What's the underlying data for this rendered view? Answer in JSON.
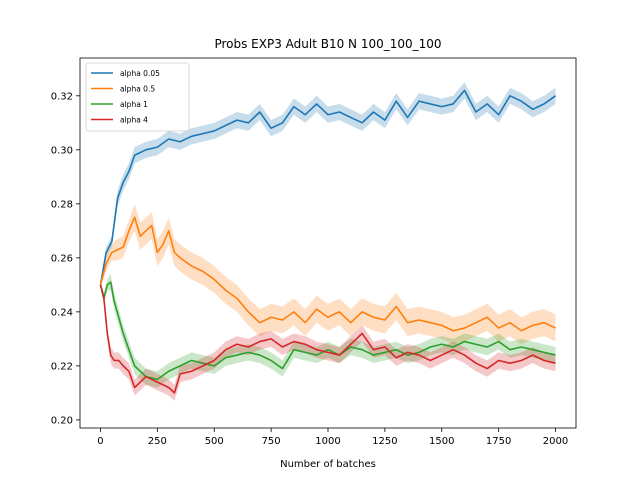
{
  "chart_data": {
    "type": "line",
    "title": "Probs EXP3 Adult B10 N 100_100_100",
    "xlabel": "Number of batches",
    "ylabel": "",
    "xlim": [
      -90,
      2090
    ],
    "ylim": [
      0.197,
      0.334
    ],
    "x_ticks": [
      0,
      250,
      500,
      750,
      1000,
      1250,
      1500,
      1750,
      2000
    ],
    "y_ticks": [
      0.2,
      0.22,
      0.24,
      0.26,
      0.28,
      0.3,
      0.32
    ],
    "y_tick_labels": [
      "0.20",
      "0.22",
      "0.24",
      "0.26",
      "0.28",
      "0.30",
      "0.32"
    ],
    "grid": false,
    "legend_position": "top-left",
    "band": "shaded band around each line",
    "series": [
      {
        "name": "alpha 0.05",
        "color": "#1f77b4",
        "x": [
          0,
          25,
          50,
          75,
          100,
          125,
          150,
          200,
          250,
          300,
          350,
          400,
          450,
          500,
          550,
          600,
          650,
          700,
          750,
          800,
          850,
          900,
          950,
          1000,
          1050,
          1100,
          1150,
          1200,
          1250,
          1300,
          1350,
          1400,
          1450,
          1500,
          1550,
          1600,
          1650,
          1700,
          1750,
          1800,
          1850,
          1900,
          1950,
          2000
        ],
        "values": [
          0.25,
          0.262,
          0.266,
          0.282,
          0.288,
          0.292,
          0.298,
          0.3,
          0.301,
          0.304,
          0.303,
          0.305,
          0.306,
          0.307,
          0.309,
          0.311,
          0.31,
          0.314,
          0.308,
          0.31,
          0.316,
          0.313,
          0.317,
          0.313,
          0.314,
          0.312,
          0.31,
          0.314,
          0.311,
          0.318,
          0.312,
          0.318,
          0.317,
          0.316,
          0.317,
          0.322,
          0.314,
          0.317,
          0.313,
          0.32,
          0.318,
          0.315,
          0.317,
          0.32
        ],
        "band": [
          0.001,
          0.002,
          0.002,
          0.003,
          0.003,
          0.003,
          0.003,
          0.003,
          0.003,
          0.003,
          0.003,
          0.003,
          0.003,
          0.003,
          0.003,
          0.003,
          0.003,
          0.003,
          0.003,
          0.003,
          0.003,
          0.003,
          0.003,
          0.003,
          0.003,
          0.003,
          0.003,
          0.003,
          0.003,
          0.003,
          0.003,
          0.003,
          0.003,
          0.003,
          0.003,
          0.003,
          0.003,
          0.003,
          0.003,
          0.003,
          0.003,
          0.003,
          0.003,
          0.003
        ]
      },
      {
        "name": "alpha 0.5",
        "color": "#ff7f0e",
        "x": [
          0,
          25,
          50,
          75,
          100,
          125,
          150,
          175,
          200,
          225,
          250,
          275,
          300,
          325,
          350,
          400,
          450,
          500,
          550,
          600,
          650,
          700,
          750,
          800,
          850,
          900,
          950,
          1000,
          1050,
          1100,
          1150,
          1200,
          1250,
          1300,
          1350,
          1400,
          1450,
          1500,
          1550,
          1600,
          1650,
          1700,
          1750,
          1800,
          1850,
          1900,
          1950,
          2000
        ],
        "values": [
          0.25,
          0.258,
          0.262,
          0.263,
          0.264,
          0.27,
          0.275,
          0.268,
          0.27,
          0.272,
          0.262,
          0.265,
          0.27,
          0.262,
          0.26,
          0.257,
          0.255,
          0.252,
          0.248,
          0.245,
          0.24,
          0.236,
          0.238,
          0.237,
          0.24,
          0.236,
          0.241,
          0.238,
          0.24,
          0.236,
          0.24,
          0.238,
          0.237,
          0.242,
          0.236,
          0.237,
          0.236,
          0.235,
          0.233,
          0.234,
          0.236,
          0.238,
          0.234,
          0.236,
          0.233,
          0.235,
          0.236,
          0.234
        ],
        "band": [
          0.001,
          0.003,
          0.003,
          0.004,
          0.004,
          0.004,
          0.005,
          0.005,
          0.005,
          0.005,
          0.005,
          0.005,
          0.005,
          0.005,
          0.005,
          0.005,
          0.005,
          0.005,
          0.005,
          0.005,
          0.005,
          0.005,
          0.005,
          0.005,
          0.005,
          0.005,
          0.005,
          0.005,
          0.005,
          0.005,
          0.005,
          0.005,
          0.005,
          0.005,
          0.005,
          0.005,
          0.005,
          0.005,
          0.005,
          0.005,
          0.005,
          0.005,
          0.005,
          0.005,
          0.005,
          0.005,
          0.005,
          0.005
        ]
      },
      {
        "name": "alpha 1",
        "color": "#2ca02c",
        "x": [
          0,
          15,
          30,
          45,
          60,
          80,
          100,
          125,
          150,
          175,
          200,
          250,
          300,
          350,
          400,
          450,
          500,
          550,
          600,
          650,
          700,
          750,
          800,
          850,
          900,
          950,
          1000,
          1050,
          1100,
          1150,
          1200,
          1250,
          1300,
          1350,
          1400,
          1450,
          1500,
          1550,
          1600,
          1650,
          1700,
          1750,
          1800,
          1850,
          1900,
          1950,
          2000
        ],
        "values": [
          0.25,
          0.245,
          0.25,
          0.251,
          0.244,
          0.238,
          0.232,
          0.226,
          0.22,
          0.218,
          0.216,
          0.215,
          0.218,
          0.22,
          0.222,
          0.221,
          0.22,
          0.223,
          0.224,
          0.225,
          0.224,
          0.222,
          0.219,
          0.226,
          0.225,
          0.224,
          0.226,
          0.224,
          0.227,
          0.226,
          0.224,
          0.225,
          0.226,
          0.224,
          0.225,
          0.227,
          0.228,
          0.227,
          0.229,
          0.228,
          0.227,
          0.229,
          0.226,
          0.227,
          0.226,
          0.225,
          0.224
        ],
        "band": [
          0.001,
          0.002,
          0.002,
          0.003,
          0.003,
          0.003,
          0.003,
          0.003,
          0.003,
          0.003,
          0.003,
          0.003,
          0.003,
          0.003,
          0.003,
          0.003,
          0.003,
          0.003,
          0.003,
          0.003,
          0.003,
          0.003,
          0.003,
          0.003,
          0.003,
          0.003,
          0.003,
          0.003,
          0.003,
          0.003,
          0.003,
          0.003,
          0.003,
          0.003,
          0.003,
          0.003,
          0.003,
          0.003,
          0.003,
          0.003,
          0.003,
          0.003,
          0.003,
          0.003,
          0.003,
          0.003,
          0.003
        ]
      },
      {
        "name": "alpha 4",
        "color": "#d62728",
        "x": [
          0,
          15,
          30,
          45,
          60,
          80,
          100,
          125,
          150,
          175,
          200,
          250,
          300,
          325,
          350,
          400,
          450,
          500,
          550,
          600,
          650,
          700,
          750,
          800,
          850,
          900,
          950,
          1000,
          1050,
          1100,
          1150,
          1200,
          1250,
          1300,
          1350,
          1400,
          1450,
          1500,
          1550,
          1600,
          1650,
          1700,
          1750,
          1800,
          1850,
          1900,
          1950,
          2000
        ],
        "values": [
          0.25,
          0.245,
          0.232,
          0.224,
          0.222,
          0.222,
          0.22,
          0.218,
          0.212,
          0.214,
          0.216,
          0.214,
          0.212,
          0.21,
          0.217,
          0.218,
          0.22,
          0.222,
          0.226,
          0.228,
          0.227,
          0.229,
          0.23,
          0.227,
          0.229,
          0.228,
          0.226,
          0.225,
          0.224,
          0.228,
          0.232,
          0.226,
          0.227,
          0.223,
          0.225,
          0.224,
          0.222,
          0.224,
          0.226,
          0.224,
          0.221,
          0.219,
          0.222,
          0.221,
          0.222,
          0.224,
          0.222,
          0.221
        ],
        "band": [
          0.001,
          0.002,
          0.002,
          0.003,
          0.003,
          0.003,
          0.003,
          0.003,
          0.003,
          0.003,
          0.003,
          0.003,
          0.003,
          0.003,
          0.003,
          0.003,
          0.003,
          0.003,
          0.003,
          0.003,
          0.003,
          0.003,
          0.003,
          0.003,
          0.003,
          0.003,
          0.003,
          0.003,
          0.003,
          0.003,
          0.003,
          0.003,
          0.003,
          0.003,
          0.003,
          0.003,
          0.003,
          0.003,
          0.003,
          0.003,
          0.003,
          0.003,
          0.003,
          0.003,
          0.003,
          0.003,
          0.003,
          0.003
        ]
      }
    ]
  }
}
